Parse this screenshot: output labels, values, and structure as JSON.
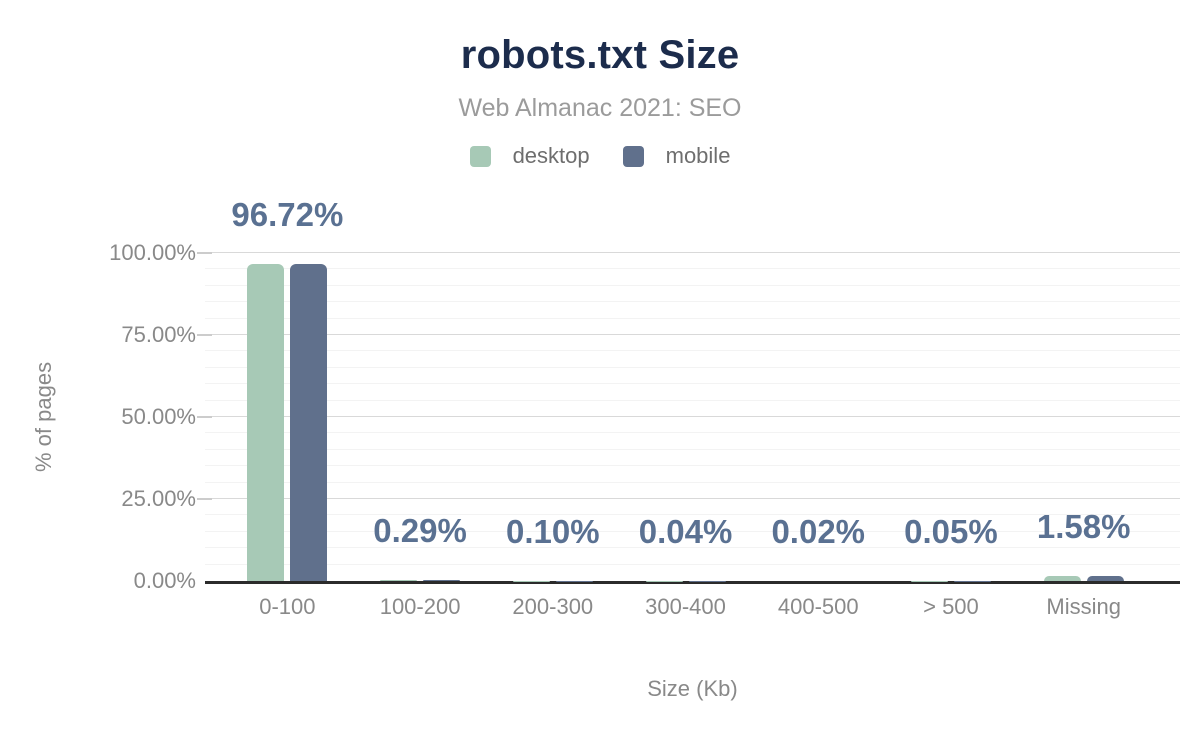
{
  "chart_data": {
    "type": "bar",
    "title": "robots.txt Size",
    "subtitle": "Web Almanac 2021: SEO",
    "xlabel": "Size (Kb)",
    "ylabel": "% of pages",
    "categories": [
      "0-100",
      "100-200",
      "200-300",
      "300-400",
      "400-500",
      "> 500",
      "Missing"
    ],
    "series": [
      {
        "name": "desktop",
        "color": "#a7c9b6",
        "values": [
          96.72,
          0.29,
          0.1,
          0.04,
          0.02,
          0.05,
          1.58
        ]
      },
      {
        "name": "mobile",
        "color": "#60708c",
        "values": [
          96.72,
          0.29,
          0.1,
          0.04,
          0.02,
          0.05,
          1.58
        ]
      }
    ],
    "annotations": [
      "96.72%",
      "0.29%",
      "0.10%",
      "0.04%",
      "0.02%",
      "0.05%",
      "1.58%"
    ],
    "yticks": [
      {
        "value": 0,
        "label": "0.00%"
      },
      {
        "value": 25,
        "label": "25.00%"
      },
      {
        "value": 50,
        "label": "50.00%"
      },
      {
        "value": 75,
        "label": "75.00%"
      },
      {
        "value": 100,
        "label": "100.00%"
      }
    ],
    "ylim": [
      0,
      100
    ],
    "minor_grid_step": 5,
    "major_grid_step": 25,
    "grid": true,
    "legend_position": "top",
    "colors": {
      "title": "#1c2c4c",
      "subtitle": "#9b9b9b",
      "axis_text": "#898989",
      "annotation": "#5a7192",
      "axis_line": "#2b2b2b",
      "desktop": "#a7c9b6",
      "mobile": "#60708c"
    }
  }
}
